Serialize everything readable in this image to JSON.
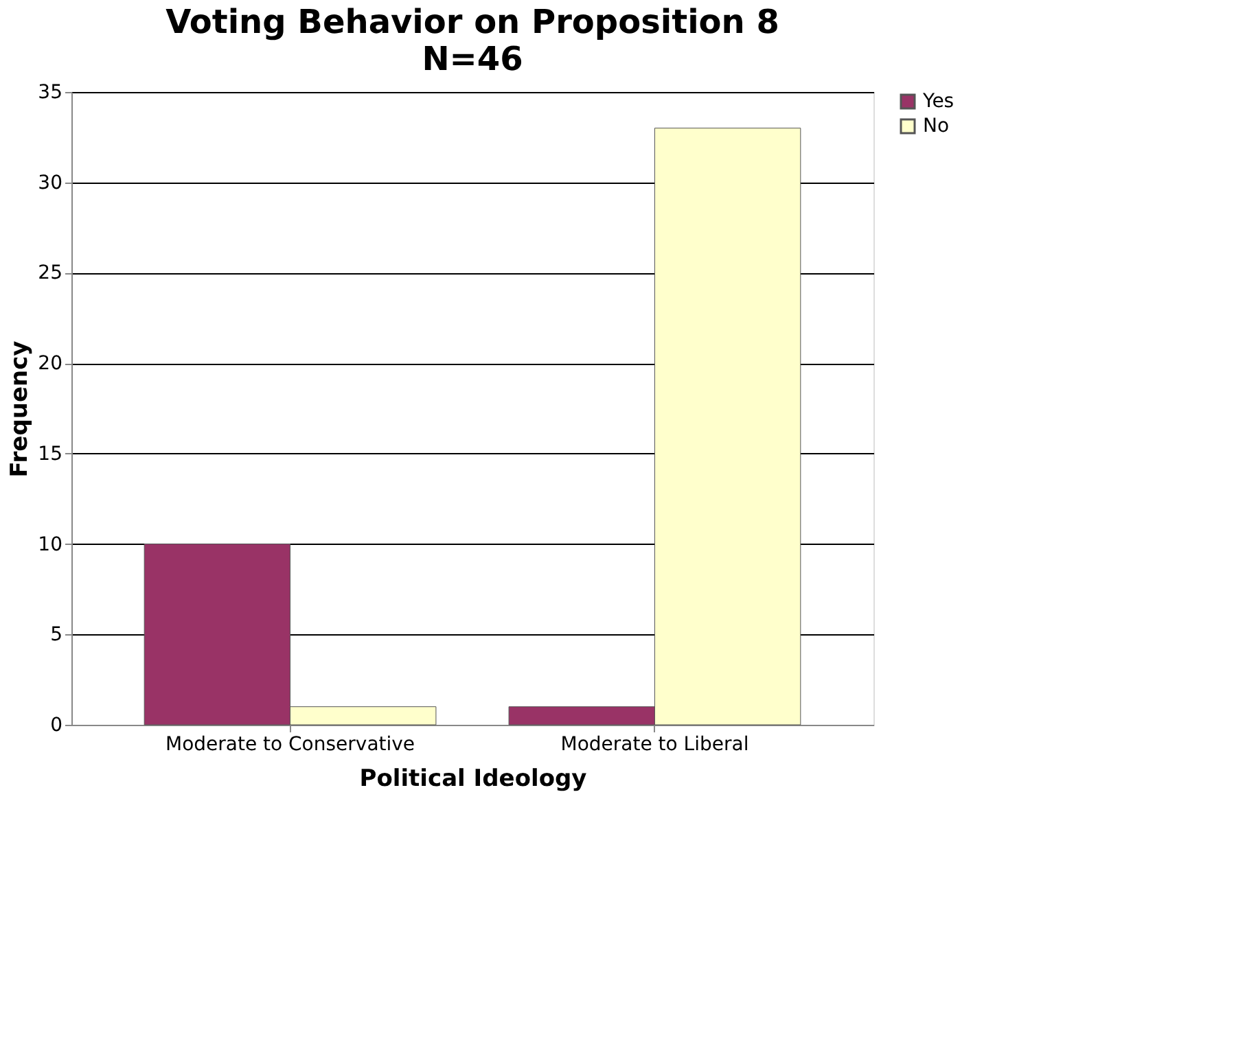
{
  "chart_data": {
    "type": "bar",
    "title": "Voting Behavior on Proposition 8",
    "subtitle": "N=46",
    "xlabel": "Political Ideology",
    "ylabel": "Frequency",
    "categories": [
      "Moderate to Conservative",
      "Moderate to Liberal"
    ],
    "series": [
      {
        "name": "Yes",
        "color": "#993366",
        "values": [
          10,
          1
        ]
      },
      {
        "name": "No",
        "color": "#ffffcc",
        "values": [
          1,
          33
        ]
      }
    ],
    "ylim": [
      0,
      35
    ],
    "yticks": [
      0,
      5,
      10,
      15,
      20,
      25,
      30,
      35
    ],
    "grid": "y",
    "legend": "right"
  }
}
